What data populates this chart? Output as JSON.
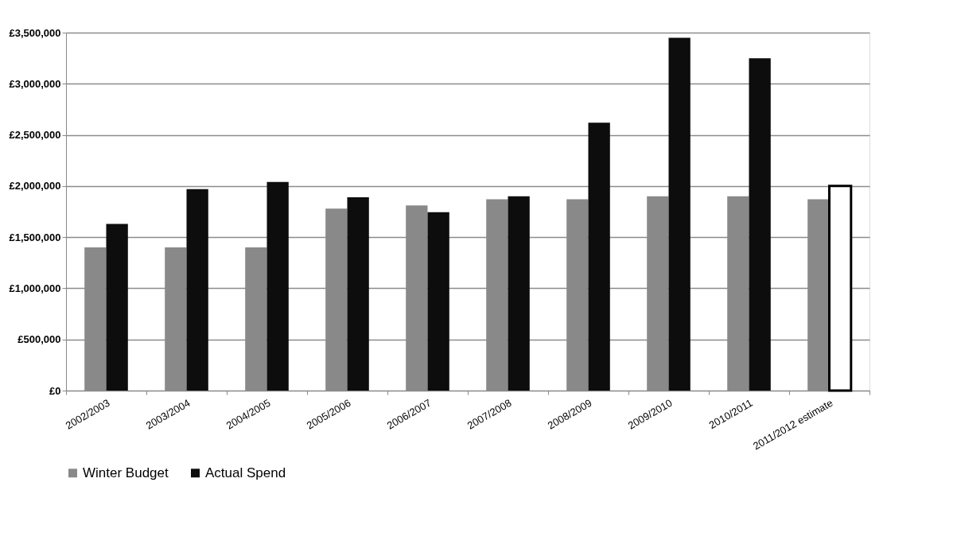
{
  "chart_data": {
    "type": "bar",
    "categories": [
      "2002/2003",
      "2003/2004",
      "2004/2005",
      "2005/2006",
      "2006/2007",
      "2007/2008",
      "2008/2009",
      "2009/2010",
      "2010/2011",
      "2011/2012 estimate"
    ],
    "series": [
      {
        "name": "Winter Budget",
        "color": "#898989",
        "values": [
          1400000,
          1400000,
          1400000,
          1780000,
          1810000,
          1870000,
          1870000,
          1900000,
          1900000,
          1870000
        ]
      },
      {
        "name": "Actual Spend",
        "color": "#0d0d0d",
        "colors": [
          "#0d0d0d",
          "#0d0d0d",
          "#0d0d0d",
          "#0d0d0d",
          "#0d0d0d",
          "#0d0d0d",
          "#0d0d0d",
          "#0d0d0d",
          "#0d0d0d",
          "#ffffff"
        ],
        "values": [
          1630000,
          1970000,
          2040000,
          1890000,
          1745000,
          1900000,
          2620000,
          3450000,
          3250000,
          2000000
        ]
      }
    ],
    "ylim": [
      0,
      3500000
    ],
    "yticks": [
      {
        "value": 0,
        "label": "£0"
      },
      {
        "value": 500000,
        "label": "£500,000"
      },
      {
        "value": 1000000,
        "label": "£1,000,000"
      },
      {
        "value": 1500000,
        "label": "£1,500,000"
      },
      {
        "value": 2000000,
        "label": "£2,000,000"
      },
      {
        "value": 2500000,
        "label": "£2,500,000"
      },
      {
        "value": 3000000,
        "label": "£3,000,000"
      },
      {
        "value": 3500000,
        "label": "£3,500,000"
      }
    ],
    "grid": "y",
    "legend": "bottom"
  }
}
